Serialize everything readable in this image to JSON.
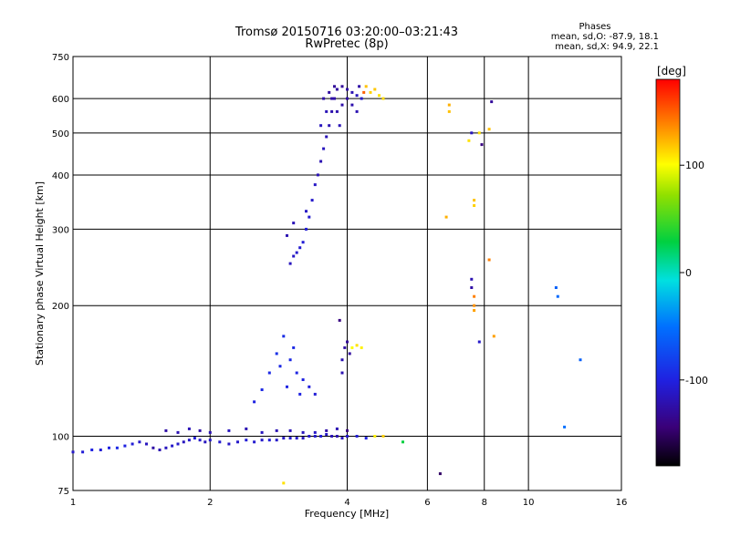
{
  "header": {
    "title_line1": "Tromsø 20150716 03:20:00–03:21:43",
    "title_line2": "RwPretec (8p)"
  },
  "phase_info": {
    "heading": "Phases",
    "line_o": "mean, sd,O: -87.9, 18.1",
    "line_x": "mean, sd,X: 94.9, 22.1"
  },
  "colorbar": {
    "label": "[deg]",
    "ticks": [
      {
        "value": 100,
        "label": "100"
      },
      {
        "value": 0,
        "label": "0"
      },
      {
        "value": -100,
        "label": "-100"
      }
    ],
    "range": [
      -180,
      180
    ]
  },
  "chart_data": {
    "type": "scatter",
    "xlabel": "Frequency [MHz]",
    "ylabel": "Stationary phase Virtual Height [km]",
    "x_scale": "log",
    "y_scale": "log",
    "xlim": [
      1,
      16
    ],
    "ylim": [
      75,
      750
    ],
    "grid": true,
    "x_ticks": [
      {
        "value": 1,
        "label": "1"
      },
      {
        "value": 2,
        "label": "2"
      },
      {
        "value": 4,
        "label": "4"
      },
      {
        "value": 6,
        "label": "6"
      },
      {
        "value": 8,
        "label": "8"
      },
      {
        "value": 10,
        "label": "10"
      },
      {
        "value": 16,
        "label": "16"
      }
    ],
    "y_ticks": [
      {
        "value": 75,
        "label": "75"
      },
      {
        "value": 100,
        "label": "100"
      },
      {
        "value": 200,
        "label": "200"
      },
      {
        "value": 300,
        "label": "300"
      },
      {
        "value": 400,
        "label": "400"
      },
      {
        "value": 500,
        "label": "500"
      },
      {
        "value": 600,
        "label": "600"
      },
      {
        "value": 750,
        "label": "750"
      }
    ],
    "points": [
      [
        1.0,
        92,
        -110
      ],
      [
        1.05,
        92,
        -105
      ],
      [
        1.1,
        93,
        -100
      ],
      [
        1.15,
        93,
        -105
      ],
      [
        1.2,
        94,
        -100
      ],
      [
        1.25,
        94,
        -95
      ],
      [
        1.3,
        95,
        -100
      ],
      [
        1.35,
        96,
        -105
      ],
      [
        1.4,
        97,
        -110
      ],
      [
        1.45,
        96,
        -115
      ],
      [
        1.5,
        94,
        -125
      ],
      [
        1.55,
        93,
        -120
      ],
      [
        1.6,
        94,
        -115
      ],
      [
        1.65,
        95,
        -110
      ],
      [
        1.7,
        96,
        -110
      ],
      [
        1.75,
        97,
        -115
      ],
      [
        1.8,
        98,
        -110
      ],
      [
        1.85,
        99,
        -105
      ],
      [
        1.9,
        98,
        -110
      ],
      [
        1.95,
        97,
        -115
      ],
      [
        2.0,
        98,
        -110
      ],
      [
        2.1,
        97,
        -108
      ],
      [
        2.2,
        96,
        -112
      ],
      [
        2.3,
        97,
        -110
      ],
      [
        2.4,
        98,
        -105
      ],
      [
        2.5,
        97,
        -108
      ],
      [
        2.6,
        98,
        -110
      ],
      [
        2.7,
        98,
        -105
      ],
      [
        2.8,
        98,
        -110
      ],
      [
        2.9,
        99,
        -112
      ],
      [
        3.0,
        99,
        -108
      ],
      [
        3.1,
        99,
        -110
      ],
      [
        3.2,
        99,
        -115
      ],
      [
        3.3,
        100,
        -110
      ],
      [
        3.4,
        100,
        -108
      ],
      [
        3.5,
        100,
        -105
      ],
      [
        3.6,
        101,
        -112
      ],
      [
        3.7,
        100,
        -118
      ],
      [
        3.8,
        100,
        -120
      ],
      [
        3.9,
        99,
        -115
      ],
      [
        4.0,
        100,
        -110
      ],
      [
        4.2,
        100,
        -105
      ],
      [
        4.4,
        99,
        -100
      ],
      [
        4.6,
        100,
        105
      ],
      [
        4.8,
        100,
        115
      ],
      [
        1.6,
        103,
        -125
      ],
      [
        1.7,
        102,
        -120
      ],
      [
        1.8,
        104,
        -118
      ],
      [
        1.9,
        103,
        -125
      ],
      [
        2.0,
        102,
        -120
      ],
      [
        2.2,
        103,
        -115
      ],
      [
        2.4,
        104,
        -120
      ],
      [
        2.6,
        102,
        -115
      ],
      [
        2.8,
        103,
        -120
      ],
      [
        3.0,
        103,
        -118
      ],
      [
        3.2,
        102,
        -115
      ],
      [
        3.4,
        102,
        -112
      ],
      [
        3.6,
        103,
        -125
      ],
      [
        3.8,
        104,
        -120
      ],
      [
        4.0,
        103,
        -140
      ],
      [
        2.5,
        120,
        -100
      ],
      [
        2.6,
        128,
        -95
      ],
      [
        2.7,
        140,
        -95
      ],
      [
        2.8,
        155,
        -90
      ],
      [
        2.9,
        170,
        -92
      ],
      [
        3.0,
        150,
        -95
      ],
      [
        3.1,
        140,
        -98
      ],
      [
        3.2,
        135,
        -100
      ],
      [
        3.3,
        130,
        -102
      ],
      [
        3.4,
        125,
        -105
      ],
      [
        2.85,
        145,
        -95
      ],
      [
        2.95,
        130,
        -98
      ],
      [
        3.05,
        160,
        -95
      ],
      [
        3.15,
        125,
        -100
      ],
      [
        3.9,
        150,
        -120
      ],
      [
        3.95,
        160,
        -125
      ],
      [
        4.0,
        165,
        -130
      ],
      [
        4.05,
        155,
        -128
      ],
      [
        4.1,
        160,
        100
      ],
      [
        4.2,
        162,
        110
      ],
      [
        4.3,
        160,
        105
      ],
      [
        3.85,
        185,
        -140
      ],
      [
        3.9,
        140,
        -120
      ],
      [
        3.0,
        250,
        -115
      ],
      [
        3.05,
        260,
        -112
      ],
      [
        3.1,
        265,
        -110
      ],
      [
        3.15,
        272,
        -108
      ],
      [
        3.2,
        280,
        -105
      ],
      [
        3.25,
        300,
        -105
      ],
      [
        3.3,
        320,
        -108
      ],
      [
        3.35,
        350,
        -110
      ],
      [
        3.4,
        380,
        -112
      ],
      [
        3.45,
        400,
        -118
      ],
      [
        3.5,
        430,
        -120
      ],
      [
        3.55,
        460,
        -115
      ],
      [
        3.6,
        490,
        -118
      ],
      [
        3.65,
        520,
        -120
      ],
      [
        3.7,
        560,
        -122
      ],
      [
        3.75,
        600,
        -125
      ],
      [
        3.8,
        630,
        -128
      ],
      [
        3.9,
        640,
        -130
      ],
      [
        4.0,
        630,
        -125
      ],
      [
        4.1,
        620,
        -120
      ],
      [
        4.2,
        610,
        -115
      ],
      [
        4.3,
        600,
        -110
      ],
      [
        4.4,
        640,
        120
      ],
      [
        4.5,
        620,
        115
      ],
      [
        4.6,
        630,
        118
      ],
      [
        4.7,
        610,
        110
      ],
      [
        4.8,
        600,
        112
      ],
      [
        2.95,
        290,
        -120
      ],
      [
        3.05,
        310,
        -118
      ],
      [
        3.25,
        330,
        -112
      ],
      [
        3.5,
        520,
        -115
      ],
      [
        3.6,
        560,
        -118
      ],
      [
        3.7,
        600,
        -125
      ],
      [
        3.8,
        560,
        -122
      ],
      [
        3.85,
        520,
        -118
      ],
      [
        3.9,
        580,
        -124
      ],
      [
        4.0,
        600,
        -126
      ],
      [
        4.1,
        580,
        -122
      ],
      [
        4.2,
        560,
        -120
      ],
      [
        3.65,
        620,
        -128
      ],
      [
        3.55,
        600,
        -124
      ],
      [
        3.75,
        640,
        -130
      ],
      [
        4.25,
        640,
        -125
      ],
      [
        4.35,
        620,
        150
      ],
      [
        6.6,
        320,
        125
      ],
      [
        6.7,
        560,
        120
      ],
      [
        6.7,
        580,
        125
      ],
      [
        7.4,
        480,
        110
      ],
      [
        7.5,
        500,
        -115
      ],
      [
        7.6,
        350,
        120
      ],
      [
        7.6,
        340,
        115
      ],
      [
        7.5,
        230,
        -120
      ],
      [
        7.5,
        220,
        -125
      ],
      [
        7.6,
        210,
        140
      ],
      [
        7.6,
        200,
        135
      ],
      [
        7.6,
        195,
        130
      ],
      [
        7.8,
        500,
        110
      ],
      [
        7.9,
        470,
        -140
      ],
      [
        7.8,
        165,
        -110
      ],
      [
        8.2,
        255,
        140
      ],
      [
        8.3,
        590,
        -130
      ],
      [
        8.2,
        510,
        120
      ],
      [
        8.4,
        170,
        130
      ],
      [
        11.5,
        220,
        -60
      ],
      [
        11.6,
        210,
        -55
      ],
      [
        12.0,
        105,
        -50
      ],
      [
        13.0,
        150,
        -60
      ],
      [
        6.4,
        82,
        -150
      ],
      [
        5.3,
        97,
        30
      ],
      [
        2.9,
        78,
        110
      ]
    ]
  }
}
